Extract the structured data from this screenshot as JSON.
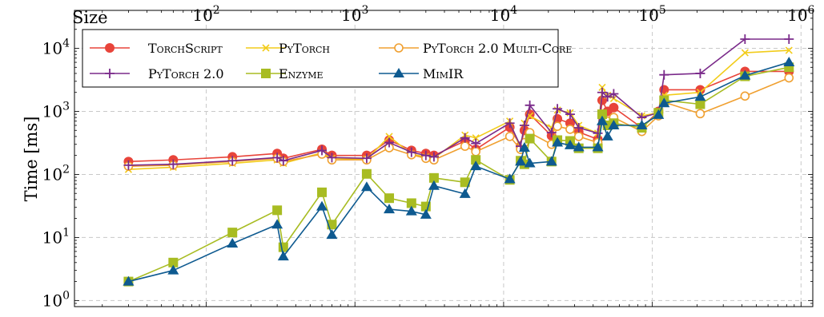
{
  "chart_data": {
    "type": "line",
    "xlabel": "Size",
    "ylabel": "Time [ms]",
    "x_scale": "log",
    "y_scale": "log",
    "xlim": [
      13,
      1200000
    ],
    "ylim": [
      0.8,
      40000
    ],
    "x_ticks": [
      {
        "value": 100,
        "base": "10",
        "exp": "2"
      },
      {
        "value": 1000,
        "base": "10",
        "exp": "3"
      },
      {
        "value": 10000,
        "base": "10",
        "exp": "4"
      },
      {
        "value": 100000,
        "base": "10",
        "exp": "5"
      },
      {
        "value": 1000000,
        "base": "10",
        "exp": "6"
      }
    ],
    "y_ticks": [
      {
        "value": 1,
        "base": "10",
        "exp": "0"
      },
      {
        "value": 10,
        "base": "10",
        "exp": "1"
      },
      {
        "value": 100,
        "base": "10",
        "exp": "2"
      },
      {
        "value": 1000,
        "base": "10",
        "exp": "3"
      },
      {
        "value": 10000,
        "base": "10",
        "exp": "4"
      }
    ],
    "grid": true,
    "legend_position": "top-left",
    "series": [
      {
        "name": "TorchScript",
        "color": "#e8443a",
        "marker": "circle",
        "x": [
          30,
          60,
          150,
          300,
          330,
          600,
          700,
          1200,
          1700,
          2400,
          3000,
          3400,
          5500,
          6500,
          11000,
          13000,
          13800,
          15000,
          21000,
          23000,
          28000,
          32000,
          43000,
          46000,
          50000,
          55000,
          85000,
          110000,
          120000,
          210000,
          420000,
          830000
        ],
        "y": [
          160,
          170,
          190,
          215,
          180,
          250,
          200,
          200,
          350,
          240,
          215,
          200,
          340,
          250,
          560,
          280,
          500,
          900,
          410,
          760,
          650,
          470,
          360,
          1500,
          1000,
          1150,
          550,
          1000,
          2200,
          2200,
          4300,
          4300
        ]
      },
      {
        "name": "PyTorch",
        "color": "#f2cc1a",
        "marker": "x",
        "x": [
          30,
          60,
          150,
          300,
          330,
          600,
          700,
          1200,
          1700,
          2400,
          3000,
          3400,
          5500,
          6500,
          11000,
          13000,
          13800,
          15000,
          21000,
          23000,
          28000,
          32000,
          43000,
          46000,
          50000,
          55000,
          85000,
          110000,
          120000,
          210000,
          420000,
          830000
        ],
        "y": [
          120,
          130,
          150,
          170,
          150,
          220,
          180,
          175,
          400,
          210,
          190,
          180,
          420,
          380,
          700,
          250,
          650,
          850,
          550,
          1050,
          950,
          600,
          450,
          2400,
          1800,
          1600,
          850,
          950,
          1800,
          2000,
          8500,
          9300
        ]
      },
      {
        "name": "PyTorch 2.0 Multi-Core",
        "color": "#f0a030",
        "marker": "circle-open",
        "x": [
          30,
          60,
          150,
          300,
          330,
          600,
          700,
          1200,
          1700,
          2400,
          3000,
          3400,
          5500,
          6500,
          11000,
          13000,
          13800,
          15000,
          21000,
          23000,
          28000,
          32000,
          43000,
          46000,
          50000,
          55000,
          85000,
          110000,
          120000,
          210000,
          420000,
          830000
        ],
        "y": [
          135,
          140,
          160,
          180,
          160,
          210,
          170,
          170,
          265,
          205,
          180,
          170,
          280,
          230,
          400,
          250,
          320,
          460,
          300,
          580,
          520,
          400,
          320,
          900,
          700,
          800,
          480,
          850,
          1400,
          920,
          1750,
          3400
        ]
      },
      {
        "name": "PyTorch 2.0",
        "color": "#7a2a8a",
        "marker": "plus",
        "x": [
          30,
          60,
          150,
          300,
          330,
          600,
          700,
          1200,
          1700,
          2400,
          3000,
          3400,
          5500,
          6500,
          11000,
          13000,
          13800,
          15000,
          21000,
          23000,
          28000,
          32000,
          43000,
          46000,
          50000,
          55000,
          85000,
          110000,
          120000,
          210000,
          420000,
          830000
        ],
        "y": [
          140,
          145,
          165,
          185,
          165,
          240,
          185,
          180,
          320,
          225,
          200,
          190,
          380,
          310,
          650,
          280,
          600,
          1250,
          460,
          1100,
          900,
          550,
          450,
          2000,
          1700,
          1900,
          800,
          950,
          3800,
          4000,
          14000,
          14000
        ]
      },
      {
        "name": "Enzyme",
        "color": "#a8bc22",
        "marker": "square",
        "x": [
          30,
          60,
          150,
          300,
          330,
          600,
          700,
          1200,
          1700,
          2400,
          3000,
          3400,
          5500,
          6500,
          11000,
          13000,
          13800,
          15000,
          21000,
          23000,
          28000,
          32000,
          43000,
          46000,
          50000,
          55000,
          85000,
          110000,
          120000,
          210000,
          420000,
          830000
        ],
        "y": [
          2,
          4,
          12,
          27,
          7,
          52,
          16,
          102,
          42,
          35,
          31,
          88,
          75,
          170,
          82,
          165,
          145,
          370,
          160,
          350,
          340,
          260,
          260,
          900,
          600,
          650,
          550,
          950,
          1500,
          1300,
          3600,
          5000
        ]
      },
      {
        "name": "MimIR",
        "color": "#0e5a90",
        "marker": "triangle",
        "x": [
          30,
          60,
          150,
          300,
          330,
          600,
          700,
          1200,
          1700,
          2400,
          3000,
          3400,
          5500,
          6500,
          11000,
          13000,
          13800,
          15000,
          21000,
          23000,
          28000,
          32000,
          43000,
          46000,
          50000,
          55000,
          85000,
          110000,
          120000,
          210000,
          420000,
          830000
        ],
        "y": [
          2,
          3,
          8,
          16,
          5,
          31,
          11,
          63,
          28,
          26,
          23,
          66,
          49,
          135,
          84,
          160,
          265,
          150,
          160,
          320,
          290,
          270,
          270,
          700,
          400,
          600,
          600,
          880,
          1350,
          1700,
          3700,
          6000
        ]
      }
    ]
  }
}
